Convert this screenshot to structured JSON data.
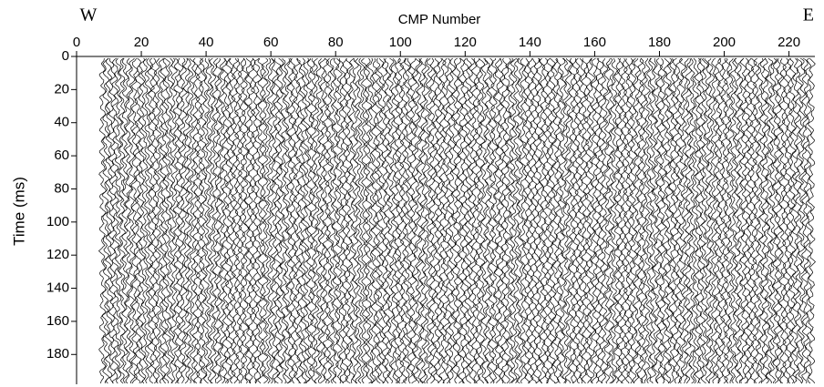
{
  "chart_data": {
    "type": "seismic",
    "title": "CMP Number",
    "y_label": "Time (ms)",
    "annotations": [
      "W",
      "E"
    ],
    "xlim": [
      0,
      228
    ],
    "xticks": [
      0,
      20,
      40,
      60,
      80,
      100,
      120,
      140,
      160,
      180,
      200,
      220
    ],
    "ylim": [
      198,
      0
    ],
    "yticks": [
      0,
      20,
      40,
      60,
      80,
      100,
      120,
      140,
      160,
      180
    ],
    "color": "#000000"
  }
}
